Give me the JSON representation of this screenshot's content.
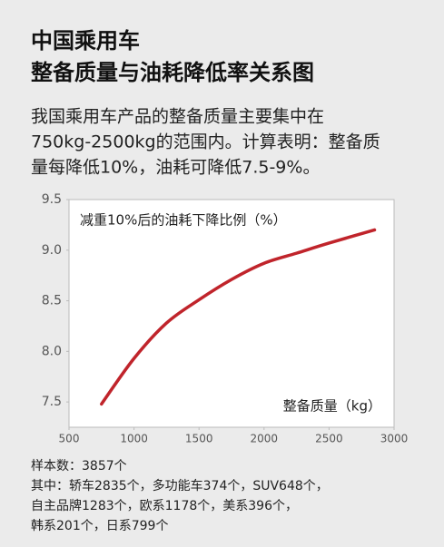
{
  "chart_data": {
    "type": "line",
    "title": [
      "中国乘用车",
      "整备质量与油耗降低率关系图"
    ],
    "description": [
      "我国乘用车产品的整备质量主要集中在",
      "750kg-2500kg的范围内。计算表明：整备质",
      "量每降低10%，油耗可降低7.5-9%。"
    ],
    "y_label": "减重10%后的油耗下降比例（%）",
    "x_label": "整备质量（kg）",
    "x": [
      750,
      1000,
      1250,
      1500,
      1750,
      2000,
      2250,
      2500,
      2850
    ],
    "series": [
      {
        "name": "油耗下降比例",
        "color": "#c0242b",
        "values": [
          7.48,
          7.93,
          8.28,
          8.51,
          8.71,
          8.87,
          8.97,
          9.07,
          9.2
        ]
      }
    ],
    "xlim": [
      500,
      3000
    ],
    "xticks": [
      500,
      1000,
      1500,
      2000,
      2500,
      3000
    ],
    "ylim": [
      7.25,
      9.5
    ],
    "yticks": [
      7.5,
      {
        "value": 8,
        "label": "8.0"
      },
      8.5,
      {
        "value": 9,
        "label": "9.0"
      },
      9.5
    ],
    "notes": [
      "样本数：3857个",
      "其中：轿车2835个，多功能车374个，SUV648个，",
      "自主品牌1283个，欧系1178个，美系396个，",
      "韩系201个，日系799个"
    ]
  }
}
